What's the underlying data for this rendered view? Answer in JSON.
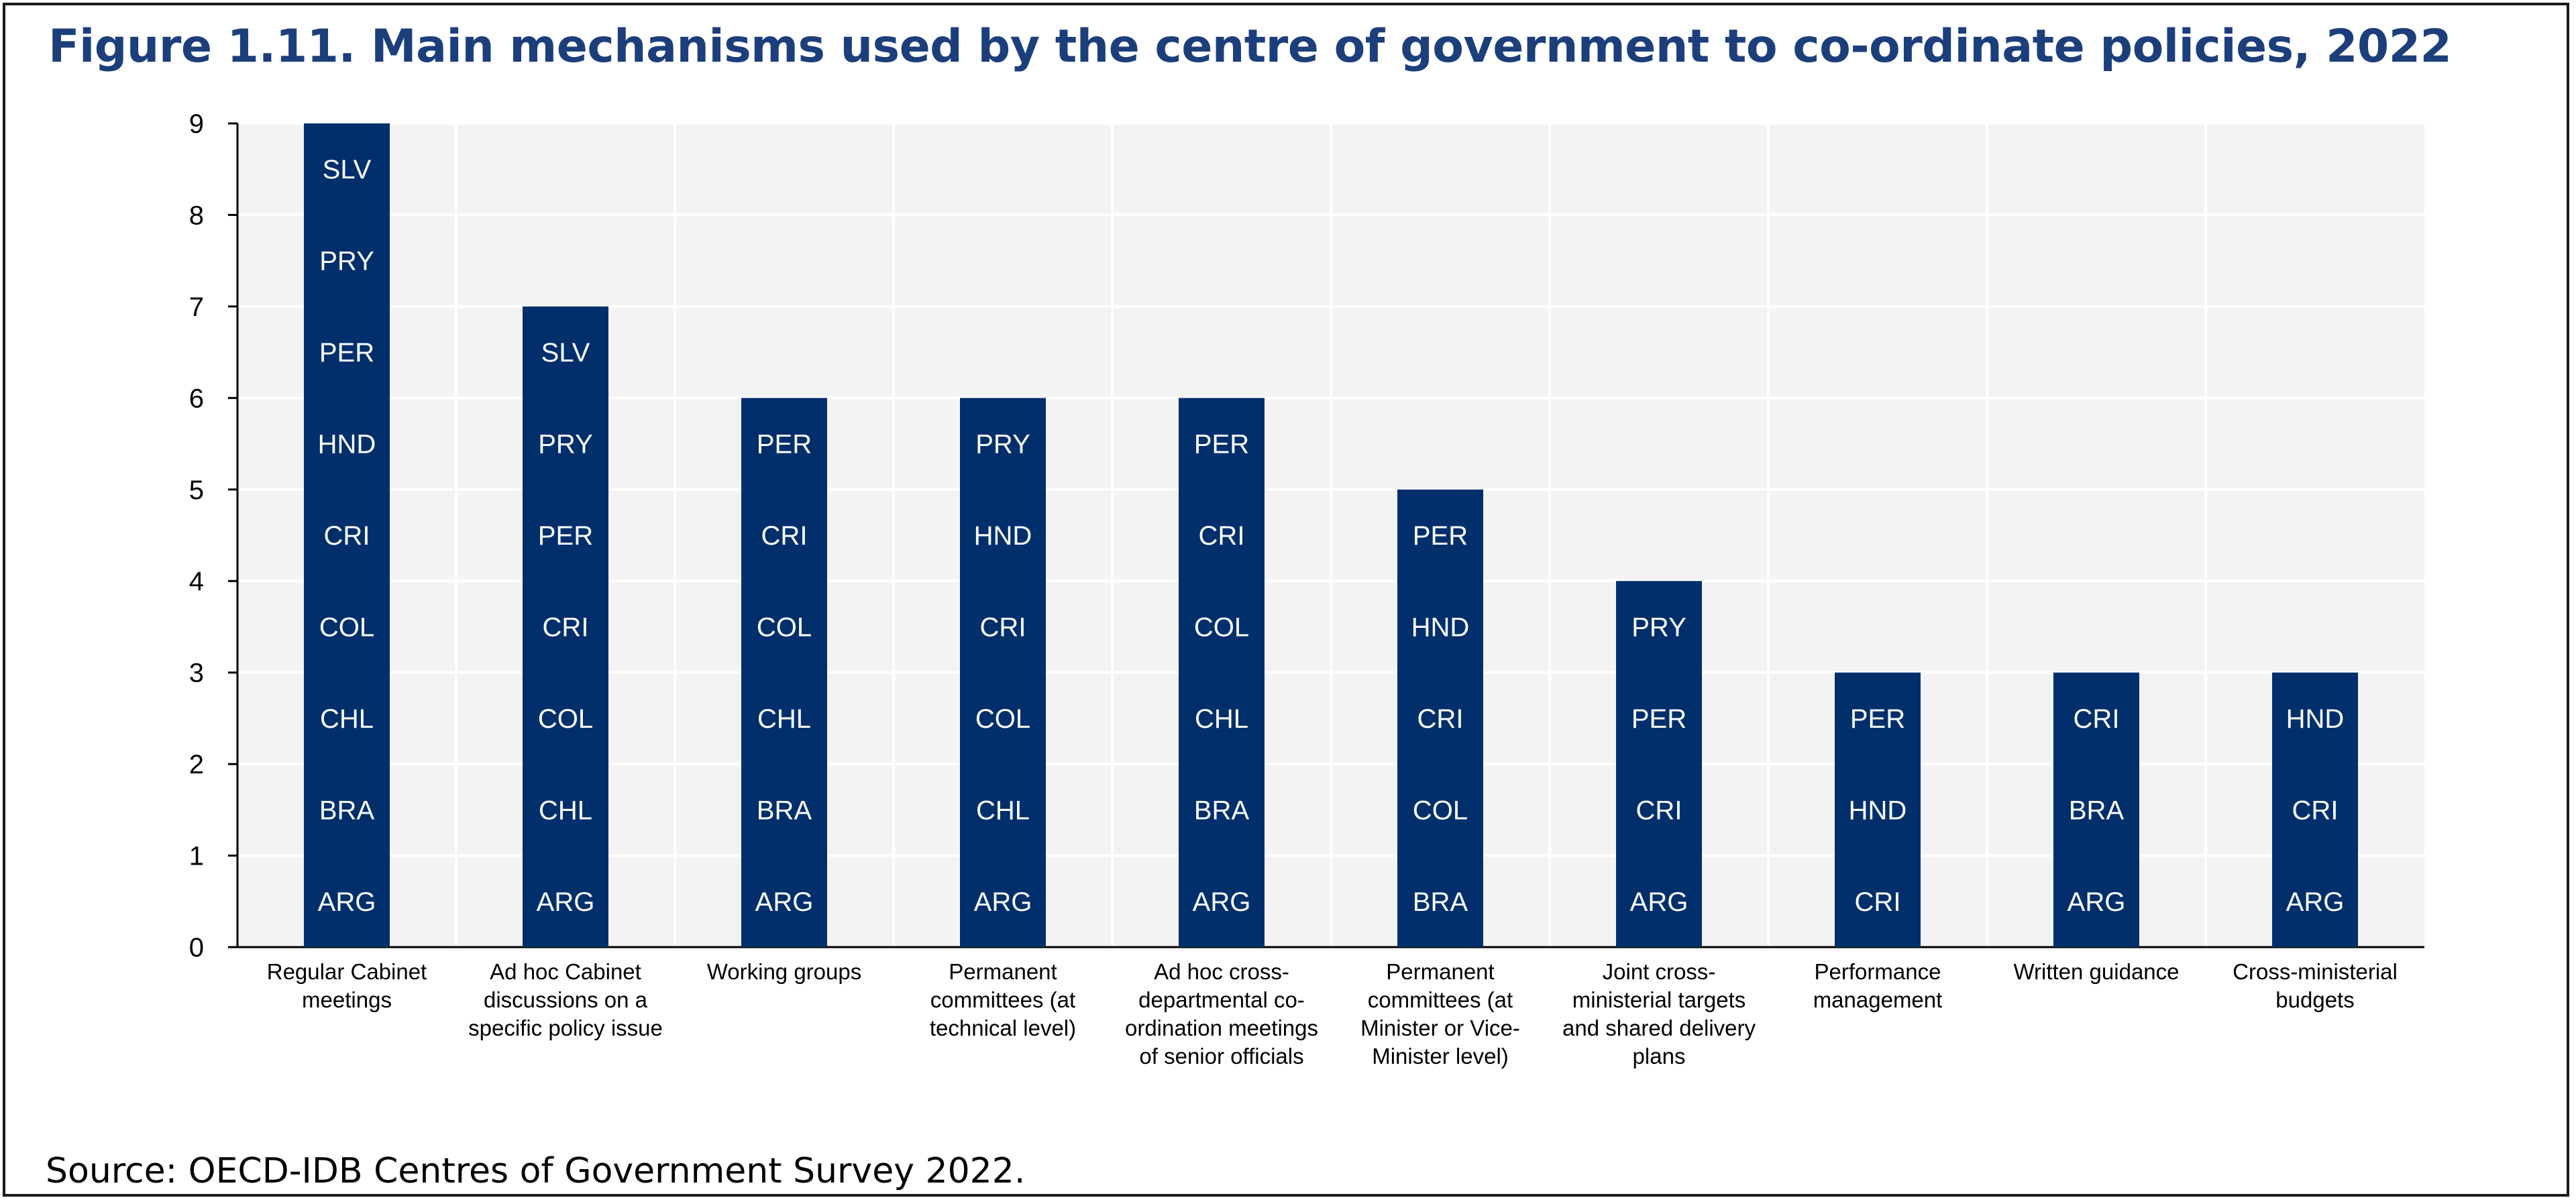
{
  "chart_data": {
    "type": "bar",
    "title": "Figure 1.11. Main mechanisms used by the centre of government to co-ordinate policies, 2022",
    "xlabel": "",
    "ylabel": "",
    "ylim": [
      0,
      9
    ],
    "yticks": [
      0,
      1,
      2,
      3,
      4,
      5,
      6,
      7,
      8,
      9
    ],
    "grid": true,
    "bar_color": "#002f6c",
    "plot_background": "#f3f3f3",
    "categories": [
      [
        "Regular Cabinet",
        "meetings"
      ],
      [
        "Ad hoc Cabinet",
        "discussions on a",
        "specific policy issue"
      ],
      [
        "Working groups"
      ],
      [
        "Permanent",
        "committees (at",
        "technical level)"
      ],
      [
        "Ad hoc cross-",
        "departmental co-",
        "ordination meetings",
        "of senior officials"
      ],
      [
        "Permanent",
        "committees (at",
        "Minister or Vice-",
        "Minister level)"
      ],
      [
        "Joint cross-",
        "ministerial targets",
        "and shared delivery",
        "plans"
      ],
      [
        "Performance",
        "management"
      ],
      [
        "Written guidance"
      ],
      [
        "Cross-ministerial",
        "budgets"
      ]
    ],
    "values": [
      9,
      7,
      6,
      6,
      6,
      5,
      4,
      3,
      3,
      3
    ],
    "segments": [
      [
        "ARG",
        "BRA",
        "CHL",
        "COL",
        "CRI",
        "HND",
        "PER",
        "PRY",
        "SLV"
      ],
      [
        "ARG",
        "CHL",
        "COL",
        "CRI",
        "PER",
        "PRY",
        "SLV"
      ],
      [
        "ARG",
        "BRA",
        "CHL",
        "COL",
        "CRI",
        "PER"
      ],
      [
        "ARG",
        "CHL",
        "COL",
        "CRI",
        "HND",
        "PRY"
      ],
      [
        "ARG",
        "BRA",
        "CHL",
        "COL",
        "CRI",
        "PER"
      ],
      [
        "BRA",
        "COL",
        "CRI",
        "HND",
        "PER"
      ],
      [
        "ARG",
        "CRI",
        "PER",
        "PRY"
      ],
      [
        "CRI",
        "HND",
        "PER"
      ],
      [
        "ARG",
        "BRA",
        "CRI"
      ],
      [
        "ARG",
        "CRI",
        "HND"
      ]
    ]
  },
  "source": "Source: OECD-IDB Centres of Government Survey 2022."
}
